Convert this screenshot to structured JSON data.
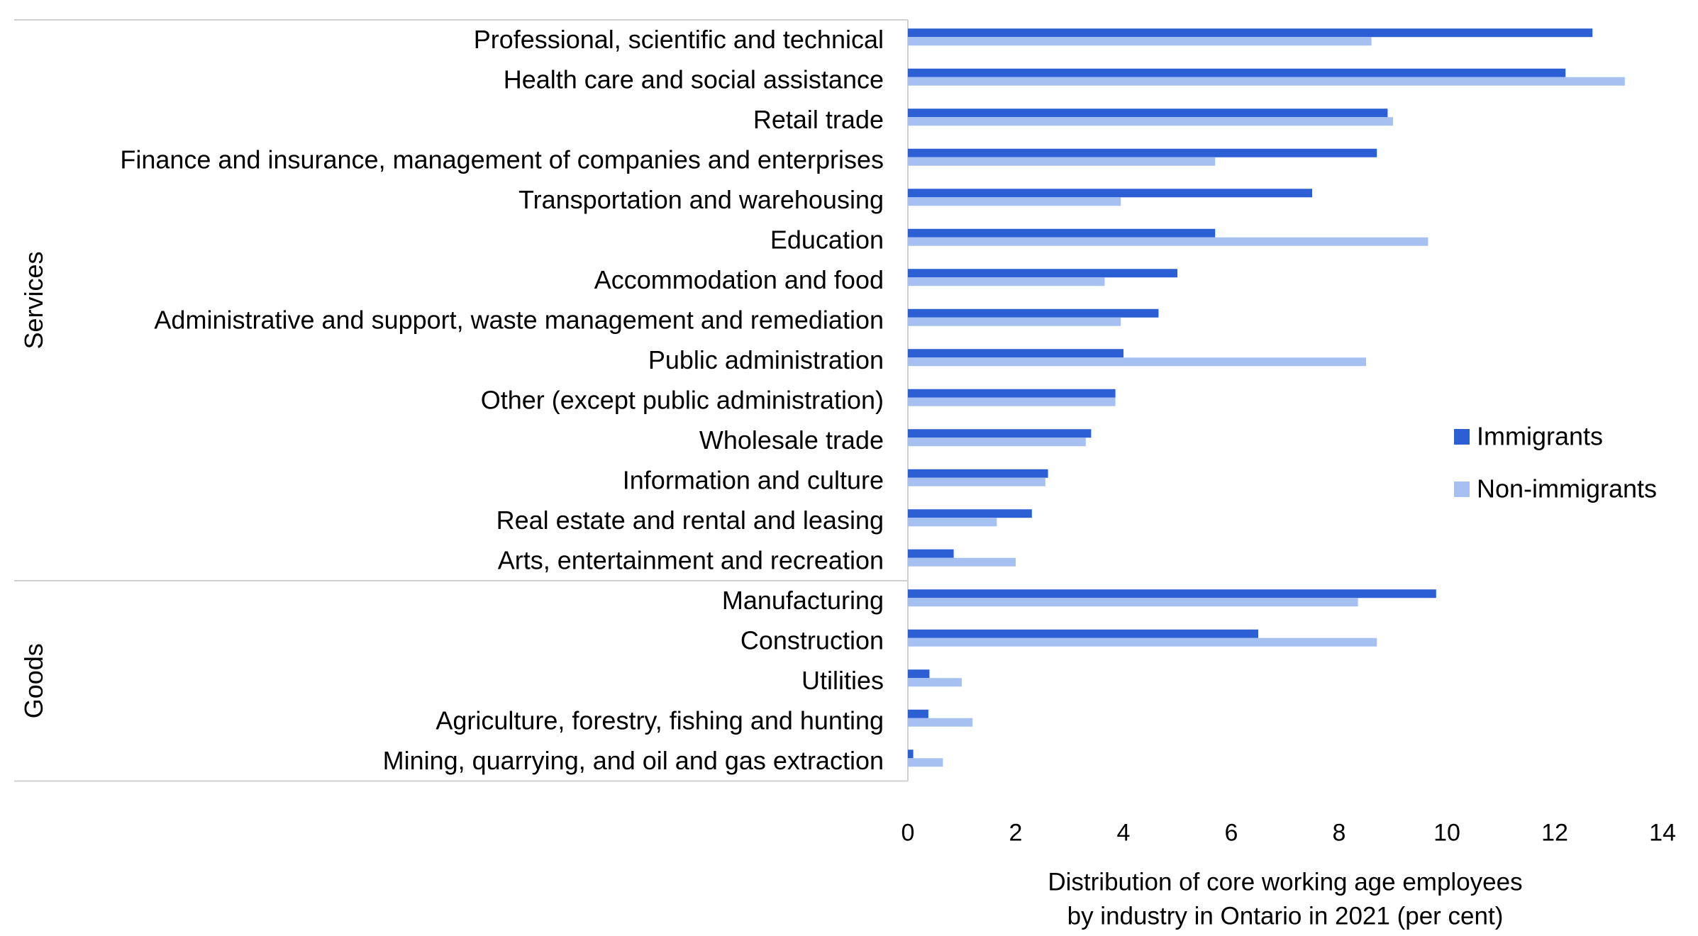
{
  "chart_data": {
    "type": "bar",
    "orientation": "horizontal",
    "groups": [
      {
        "name": "Services",
        "categories": [
          "Professional, scientific and technical",
          "Health care and social assistance",
          "Retail trade",
          "Finance and insurance, management of companies and enterprises",
          "Transportation and warehousing",
          "Education",
          "Accommodation and food",
          "Administrative and support, waste management and remediation",
          "Public administration",
          "Other (except public administration)",
          "Wholesale trade",
          "Information and culture",
          "Real estate and rental and leasing",
          "Arts, entertainment and recreation"
        ]
      },
      {
        "name": "Goods",
        "categories": [
          "Manufacturing",
          "Construction",
          "Utilities",
          "Agriculture, forestry, fishing and hunting",
          "Mining, quarrying, and oil and gas extraction"
        ]
      }
    ],
    "series": [
      {
        "name": "Immigrants",
        "color": "#2C5FD4",
        "values": [
          12.7,
          12.2,
          8.9,
          8.7,
          7.5,
          5.7,
          5.0,
          4.65,
          4.0,
          3.85,
          3.4,
          2.6,
          2.3,
          0.85,
          9.8,
          6.5,
          0.4,
          0.38,
          0.1
        ]
      },
      {
        "name": "Non-immigrants",
        "color": "#A6C0F2",
        "values": [
          8.6,
          13.3,
          9.0,
          5.7,
          3.95,
          9.65,
          3.65,
          3.95,
          8.5,
          3.85,
          3.3,
          2.55,
          1.65,
          2.0,
          8.35,
          8.7,
          1.0,
          1.2,
          0.65
        ]
      }
    ],
    "x_ticks": [
      "0",
      "2",
      "4",
      "6",
      "8",
      "10",
      "12",
      "14"
    ],
    "xlim": [
      0,
      14
    ],
    "xlabel": [
      "Distribution of core working age employees",
      "by industry in Ontario in 2021 (per cent)"
    ],
    "grid": false,
    "legend_position": "right"
  }
}
